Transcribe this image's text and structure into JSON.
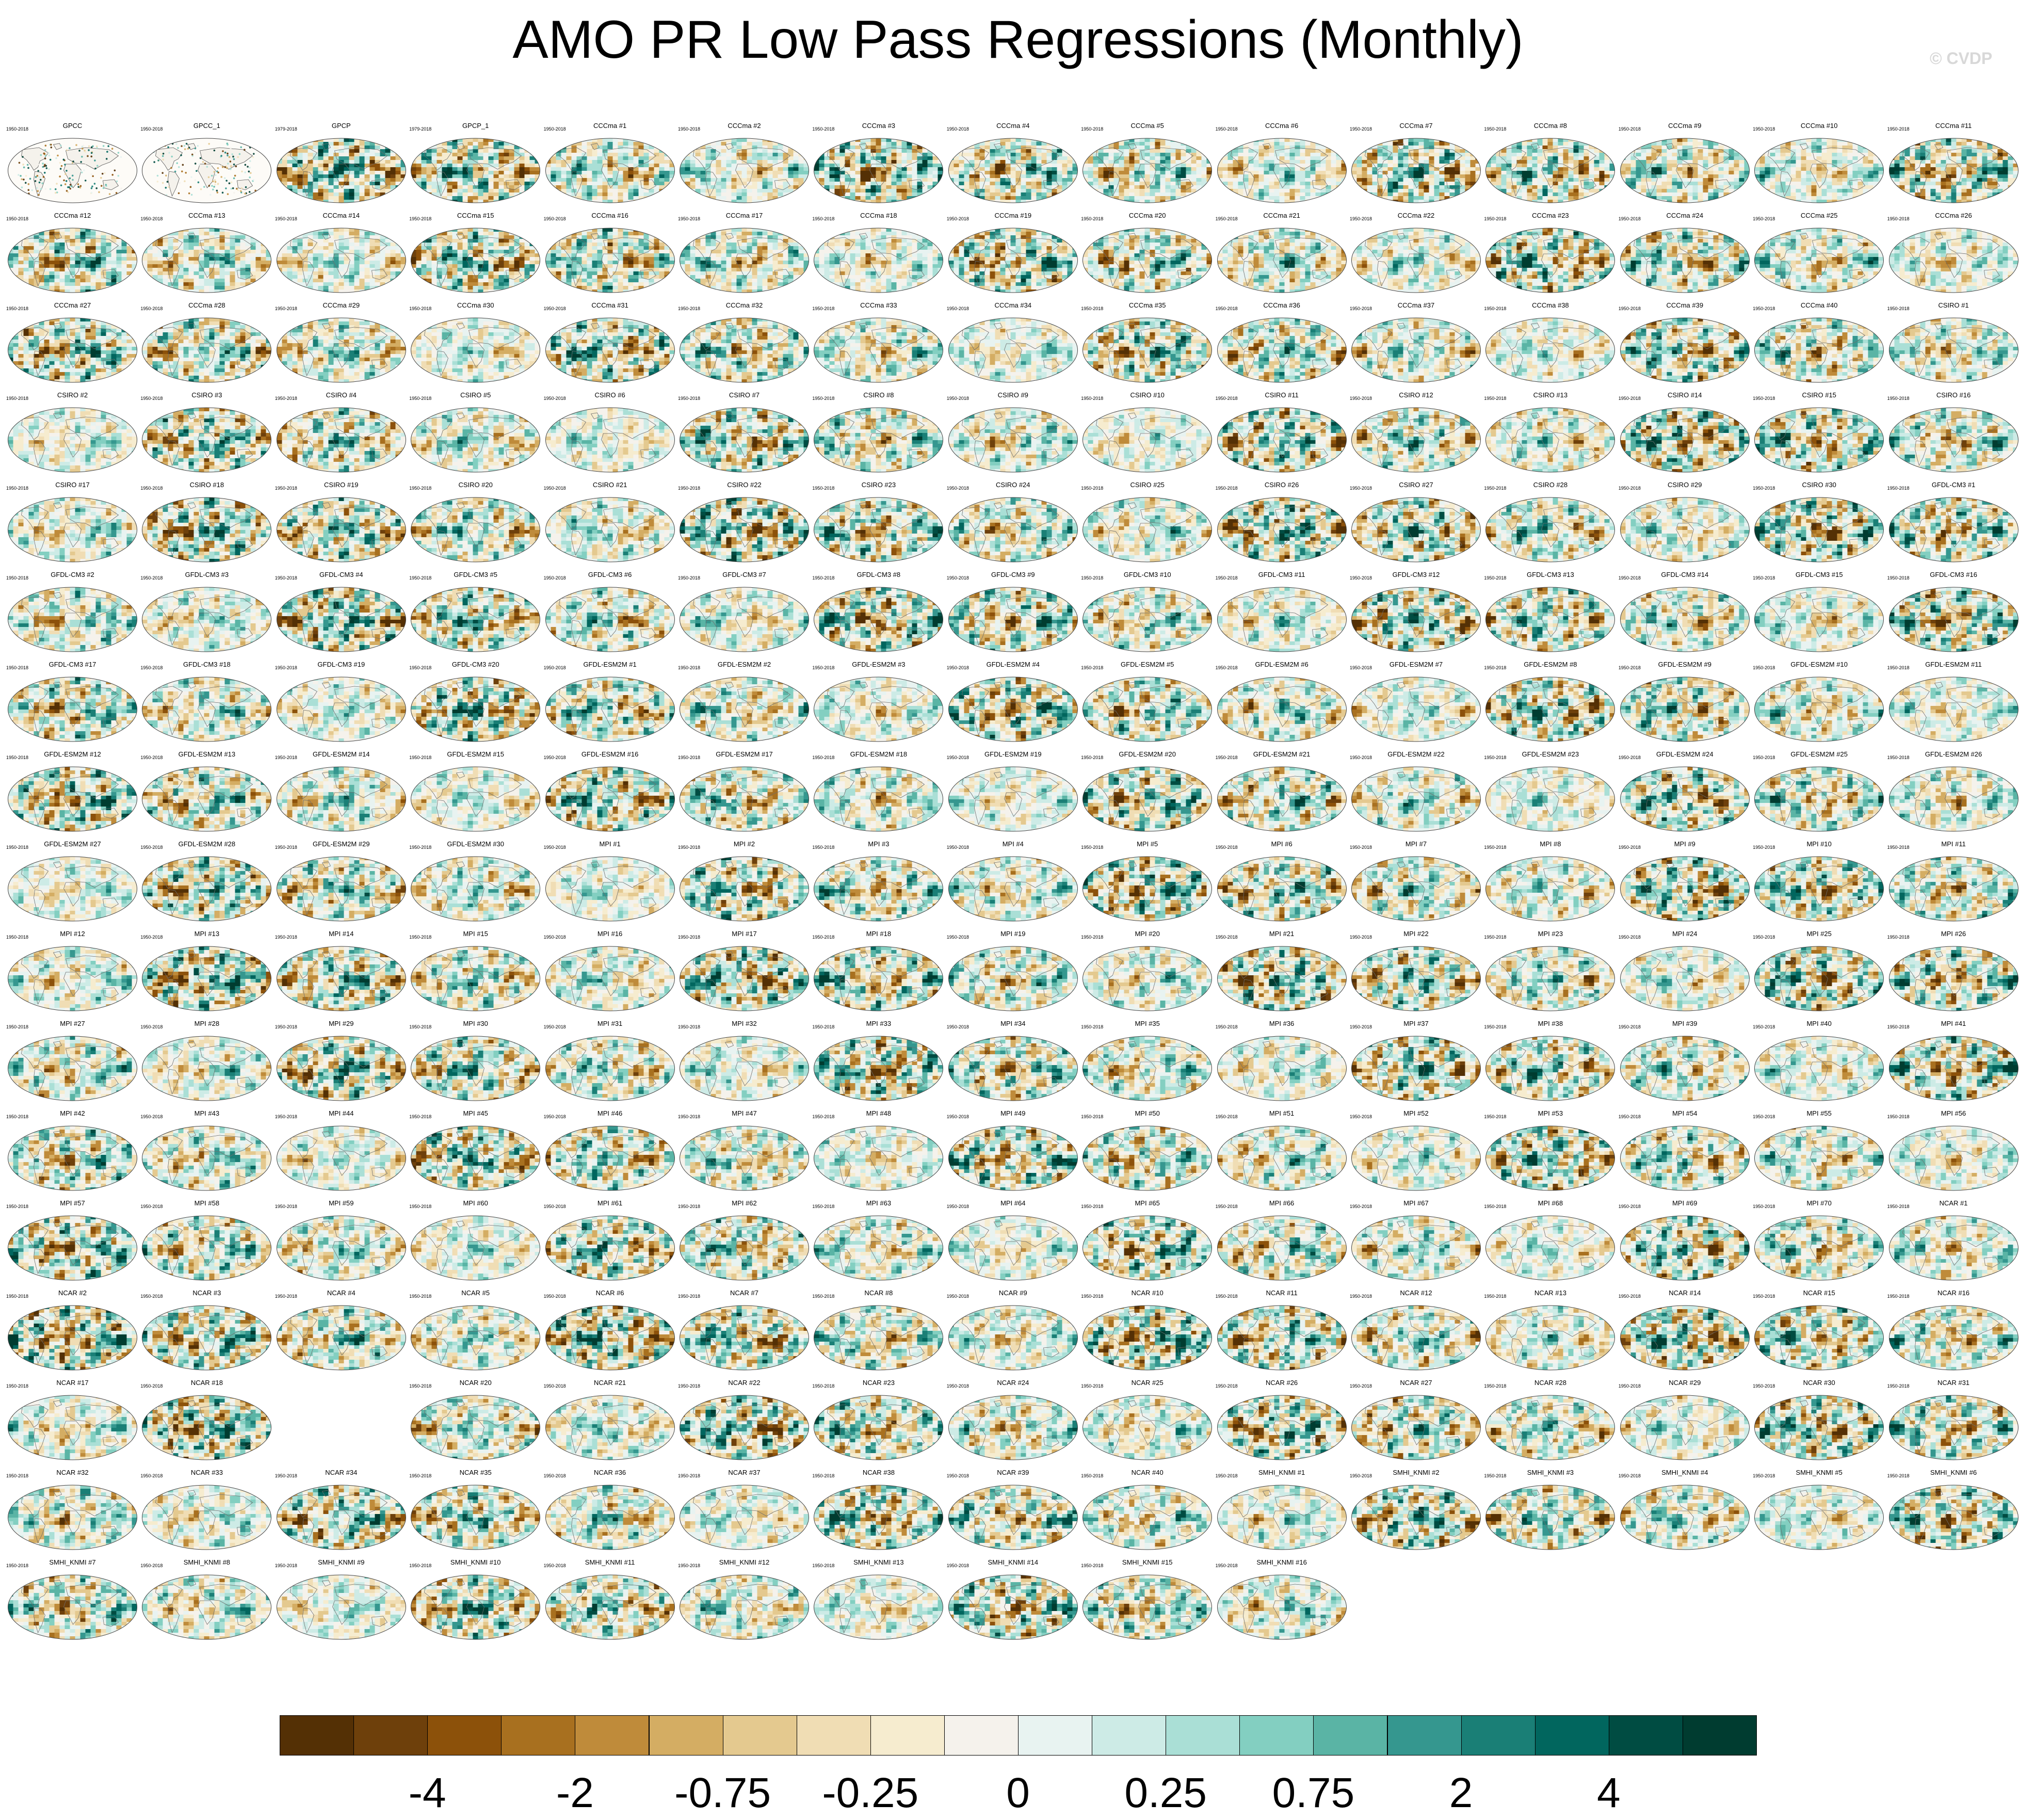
{
  "title": "AMO PR Low Pass Regressions (Monthly)",
  "watermark": "© CVDP",
  "panel_years_default": "1950-2018",
  "panels": [
    {
      "label": "GPCC",
      "years": "1950-2018",
      "land_only": true
    },
    {
      "label": "GPCC_1",
      "years": "1950-2018",
      "land_only": true
    },
    {
      "label": "GPCP",
      "years": "1979-2018"
    },
    {
      "label": "GPCP_1",
      "years": "1979-2018"
    },
    {
      "label": "CCCma #1"
    },
    {
      "label": "CCCma #2"
    },
    {
      "label": "CCCma #3"
    },
    {
      "label": "CCCma #4"
    },
    {
      "label": "CCCma #5"
    },
    {
      "label": "CCCma #6"
    },
    {
      "label": "CCCma #7"
    },
    {
      "label": "CCCma #8"
    },
    {
      "label": "CCCma #9"
    },
    {
      "label": "CCCma #10"
    },
    {
      "label": "CCCma #11"
    },
    {
      "label": "CCCma #12"
    },
    {
      "label": "CCCma #13"
    },
    {
      "label": "CCCma #14"
    },
    {
      "label": "CCCma #15"
    },
    {
      "label": "CCCma #16"
    },
    {
      "label": "CCCma #17"
    },
    {
      "label": "CCCma #18"
    },
    {
      "label": "CCCma #19"
    },
    {
      "label": "CCCma #20"
    },
    {
      "label": "CCCma #21"
    },
    {
      "label": "CCCma #22"
    },
    {
      "label": "CCCma #23"
    },
    {
      "label": "CCCma #24"
    },
    {
      "label": "CCCma #25"
    },
    {
      "label": "CCCma #26"
    },
    {
      "label": "CCCma #27"
    },
    {
      "label": "CCCma #28"
    },
    {
      "label": "CCCma #29"
    },
    {
      "label": "CCCma #30"
    },
    {
      "label": "CCCma #31"
    },
    {
      "label": "CCCma #32"
    },
    {
      "label": "CCCma #33"
    },
    {
      "label": "CCCma #34"
    },
    {
      "label": "CCCma #35"
    },
    {
      "label": "CCCma #36"
    },
    {
      "label": "CCCma #37"
    },
    {
      "label": "CCCma #38"
    },
    {
      "label": "CCCma #39"
    },
    {
      "label": "CCCma #40"
    },
    {
      "label": "CSIRO #1"
    },
    {
      "label": "CSIRO #2"
    },
    {
      "label": "CSIRO #3"
    },
    {
      "label": "CSIRO #4"
    },
    {
      "label": "CSIRO #5"
    },
    {
      "label": "CSIRO #6"
    },
    {
      "label": "CSIRO #7"
    },
    {
      "label": "CSIRO #8"
    },
    {
      "label": "CSIRO #9"
    },
    {
      "label": "CSIRO #10"
    },
    {
      "label": "CSIRO #11"
    },
    {
      "label": "CSIRO #12"
    },
    {
      "label": "CSIRO #13"
    },
    {
      "label": "CSIRO #14"
    },
    {
      "label": "CSIRO #15"
    },
    {
      "label": "CSIRO #16"
    },
    {
      "label": "CSIRO #17"
    },
    {
      "label": "CSIRO #18"
    },
    {
      "label": "CSIRO #19"
    },
    {
      "label": "CSIRO #20"
    },
    {
      "label": "CSIRO #21"
    },
    {
      "label": "CSIRO #22"
    },
    {
      "label": "CSIRO #23"
    },
    {
      "label": "CSIRO #24"
    },
    {
      "label": "CSIRO #25"
    },
    {
      "label": "CSIRO #26"
    },
    {
      "label": "CSIRO #27"
    },
    {
      "label": "CSIRO #28"
    },
    {
      "label": "CSIRO #29"
    },
    {
      "label": "CSIRO #30"
    },
    {
      "label": "GFDL-CM3 #1"
    },
    {
      "label": "GFDL-CM3 #2"
    },
    {
      "label": "GFDL-CM3 #3"
    },
    {
      "label": "GFDL-CM3 #4"
    },
    {
      "label": "GFDL-CM3 #5"
    },
    {
      "label": "GFDL-CM3 #6"
    },
    {
      "label": "GFDL-CM3 #7"
    },
    {
      "label": "GFDL-CM3 #8"
    },
    {
      "label": "GFDL-CM3 #9"
    },
    {
      "label": "GFDL-CM3 #10"
    },
    {
      "label": "GFDL-CM3 #11"
    },
    {
      "label": "GFDL-CM3 #12"
    },
    {
      "label": "GFDL-CM3 #13"
    },
    {
      "label": "GFDL-CM3 #14"
    },
    {
      "label": "GFDL-CM3 #15"
    },
    {
      "label": "GFDL-CM3 #16"
    },
    {
      "label": "GFDL-CM3 #17"
    },
    {
      "label": "GFDL-CM3 #18"
    },
    {
      "label": "GFDL-CM3 #19"
    },
    {
      "label": "GFDL-CM3 #20"
    },
    {
      "label": "GFDL-ESM2M #1"
    },
    {
      "label": "GFDL-ESM2M #2"
    },
    {
      "label": "GFDL-ESM2M #3"
    },
    {
      "label": "GFDL-ESM2M #4"
    },
    {
      "label": "GFDL-ESM2M #5"
    },
    {
      "label": "GFDL-ESM2M #6"
    },
    {
      "label": "GFDL-ESM2M #7"
    },
    {
      "label": "GFDL-ESM2M #8"
    },
    {
      "label": "GFDL-ESM2M #9"
    },
    {
      "label": "GFDL-ESM2M #10"
    },
    {
      "label": "GFDL-ESM2M #11"
    },
    {
      "label": "GFDL-ESM2M #12"
    },
    {
      "label": "GFDL-ESM2M #13"
    },
    {
      "label": "GFDL-ESM2M #14"
    },
    {
      "label": "GFDL-ESM2M #15"
    },
    {
      "label": "GFDL-ESM2M #16"
    },
    {
      "label": "GFDL-ESM2M #17"
    },
    {
      "label": "GFDL-ESM2M #18"
    },
    {
      "label": "GFDL-ESM2M #19"
    },
    {
      "label": "GFDL-ESM2M #20"
    },
    {
      "label": "GFDL-ESM2M #21"
    },
    {
      "label": "GFDL-ESM2M #22"
    },
    {
      "label": "GFDL-ESM2M #23"
    },
    {
      "label": "GFDL-ESM2M #24"
    },
    {
      "label": "GFDL-ESM2M #25"
    },
    {
      "label": "GFDL-ESM2M #26"
    },
    {
      "label": "GFDL-ESM2M #27"
    },
    {
      "label": "GFDL-ESM2M #28"
    },
    {
      "label": "GFDL-ESM2M #29"
    },
    {
      "label": "GFDL-ESM2M #30"
    },
    {
      "label": "MPI #1"
    },
    {
      "label": "MPI #2"
    },
    {
      "label": "MPI #3"
    },
    {
      "label": "MPI #4"
    },
    {
      "label": "MPI #5"
    },
    {
      "label": "MPI #6"
    },
    {
      "label": "MPI #7"
    },
    {
      "label": "MPI #8"
    },
    {
      "label": "MPI #9"
    },
    {
      "label": "MPI #10"
    },
    {
      "label": "MPI #11"
    },
    {
      "label": "MPI #12"
    },
    {
      "label": "MPI #13"
    },
    {
      "label": "MPI #14"
    },
    {
      "label": "MPI #15"
    },
    {
      "label": "MPI #16"
    },
    {
      "label": "MPI #17"
    },
    {
      "label": "MPI #18"
    },
    {
      "label": "MPI #19"
    },
    {
      "label": "MPI #20"
    },
    {
      "label": "MPI #21"
    },
    {
      "label": "MPI #22"
    },
    {
      "label": "MPI #23"
    },
    {
      "label": "MPI #24"
    },
    {
      "label": "MPI #25"
    },
    {
      "label": "MPI #26"
    },
    {
      "label": "MPI #27"
    },
    {
      "label": "MPI #28"
    },
    {
      "label": "MPI #29"
    },
    {
      "label": "MPI #30"
    },
    {
      "label": "MPI #31"
    },
    {
      "label": "MPI #32"
    },
    {
      "label": "MPI #33"
    },
    {
      "label": "MPI #34"
    },
    {
      "label": "MPI #35"
    },
    {
      "label": "MPI #36"
    },
    {
      "label": "MPI #37"
    },
    {
      "label": "MPI #38"
    },
    {
      "label": "MPI #39"
    },
    {
      "label": "MPI #40"
    },
    {
      "label": "MPI #41"
    },
    {
      "label": "MPI #42"
    },
    {
      "label": "MPI #43"
    },
    {
      "label": "MPI #44"
    },
    {
      "label": "MPI #45"
    },
    {
      "label": "MPI #46"
    },
    {
      "label": "MPI #47"
    },
    {
      "label": "MPI #48"
    },
    {
      "label": "MPI #49"
    },
    {
      "label": "MPI #50"
    },
    {
      "label": "MPI #51"
    },
    {
      "label": "MPI #52"
    },
    {
      "label": "MPI #53"
    },
    {
      "label": "MPI #54"
    },
    {
      "label": "MPI #55"
    },
    {
      "label": "MPI #56"
    },
    {
      "label": "MPI #57"
    },
    {
      "label": "MPI #58"
    },
    {
      "label": "MPI #59"
    },
    {
      "label": "MPI #60"
    },
    {
      "label": "MPI #61"
    },
    {
      "label": "MPI #62"
    },
    {
      "label": "MPI #63"
    },
    {
      "label": "MPI #64"
    },
    {
      "label": "MPI #65"
    },
    {
      "label": "MPI #66"
    },
    {
      "label": "MPI #67"
    },
    {
      "label": "MPI #68"
    },
    {
      "label": "MPI #69"
    },
    {
      "label": "MPI #70"
    },
    {
      "label": "NCAR #1"
    },
    {
      "label": "NCAR #2"
    },
    {
      "label": "NCAR #3"
    },
    {
      "label": "NCAR #4"
    },
    {
      "label": "NCAR #5"
    },
    {
      "label": "NCAR #6"
    },
    {
      "label": "NCAR #7"
    },
    {
      "label": "NCAR #8"
    },
    {
      "label": "NCAR #9"
    },
    {
      "label": "NCAR #10"
    },
    {
      "label": "NCAR #11"
    },
    {
      "label": "NCAR #12"
    },
    {
      "label": "NCAR #13"
    },
    {
      "label": "NCAR #14"
    },
    {
      "label": "NCAR #15"
    },
    {
      "label": "NCAR #16"
    },
    {
      "label": "NCAR #17"
    },
    {
      "label": "NCAR #18"
    },
    {
      "empty": true
    },
    {
      "label": "NCAR #20"
    },
    {
      "label": "NCAR #21"
    },
    {
      "label": "NCAR #22"
    },
    {
      "label": "NCAR #23"
    },
    {
      "label": "NCAR #24"
    },
    {
      "label": "NCAR #25"
    },
    {
      "label": "NCAR #26"
    },
    {
      "label": "NCAR #27"
    },
    {
      "label": "NCAR #28"
    },
    {
      "label": "NCAR #29"
    },
    {
      "label": "NCAR #30"
    },
    {
      "label": "NCAR #31"
    },
    {
      "label": "NCAR #32"
    },
    {
      "label": "NCAR #33"
    },
    {
      "label": "NCAR #34"
    },
    {
      "label": "NCAR #35"
    },
    {
      "label": "NCAR #36"
    },
    {
      "label": "NCAR #37"
    },
    {
      "label": "NCAR #38"
    },
    {
      "label": "NCAR #39"
    },
    {
      "label": "NCAR #40"
    },
    {
      "label": "SMHI_KNMI #1"
    },
    {
      "label": "SMHI_KNMI #2"
    },
    {
      "label": "SMHI_KNMI #3"
    },
    {
      "label": "SMHI_KNMI #4"
    },
    {
      "label": "SMHI_KNMI #5"
    },
    {
      "label": "SMHI_KNMI #6"
    },
    {
      "label": "SMHI_KNMI #7"
    },
    {
      "label": "SMHI_KNMI #8"
    },
    {
      "label": "SMHI_KNMI #9"
    },
    {
      "label": "SMHI_KNMI #10"
    },
    {
      "label": "SMHI_KNMI #11"
    },
    {
      "label": "SMHI_KNMI #12"
    },
    {
      "label": "SMHI_KNMI #13"
    },
    {
      "label": "SMHI_KNMI #14"
    },
    {
      "label": "SMHI_KNMI #15"
    },
    {
      "label": "SMHI_KNMI #16"
    }
  ],
  "colorbar": {
    "colors": [
      "#543005",
      "#6e400b",
      "#8c510a",
      "#a8701f",
      "#bf8b3a",
      "#d4ad63",
      "#e4c98f",
      "#f0ddb4",
      "#f6eccf",
      "#f5f2ec",
      "#e8f3f1",
      "#cdebe6",
      "#aadfd6",
      "#83cfc1",
      "#5ab4a5",
      "#35978f",
      "#1a7f76",
      "#01665e",
      "#004c42",
      "#003c30"
    ],
    "labels": [
      "-4",
      "-2",
      "-0.75",
      "-0.25",
      "0",
      "0.25",
      "0.75",
      "2",
      "4"
    ],
    "label_after_box": [
      2,
      4,
      6,
      8,
      10,
      12,
      14,
      16,
      18
    ]
  }
}
